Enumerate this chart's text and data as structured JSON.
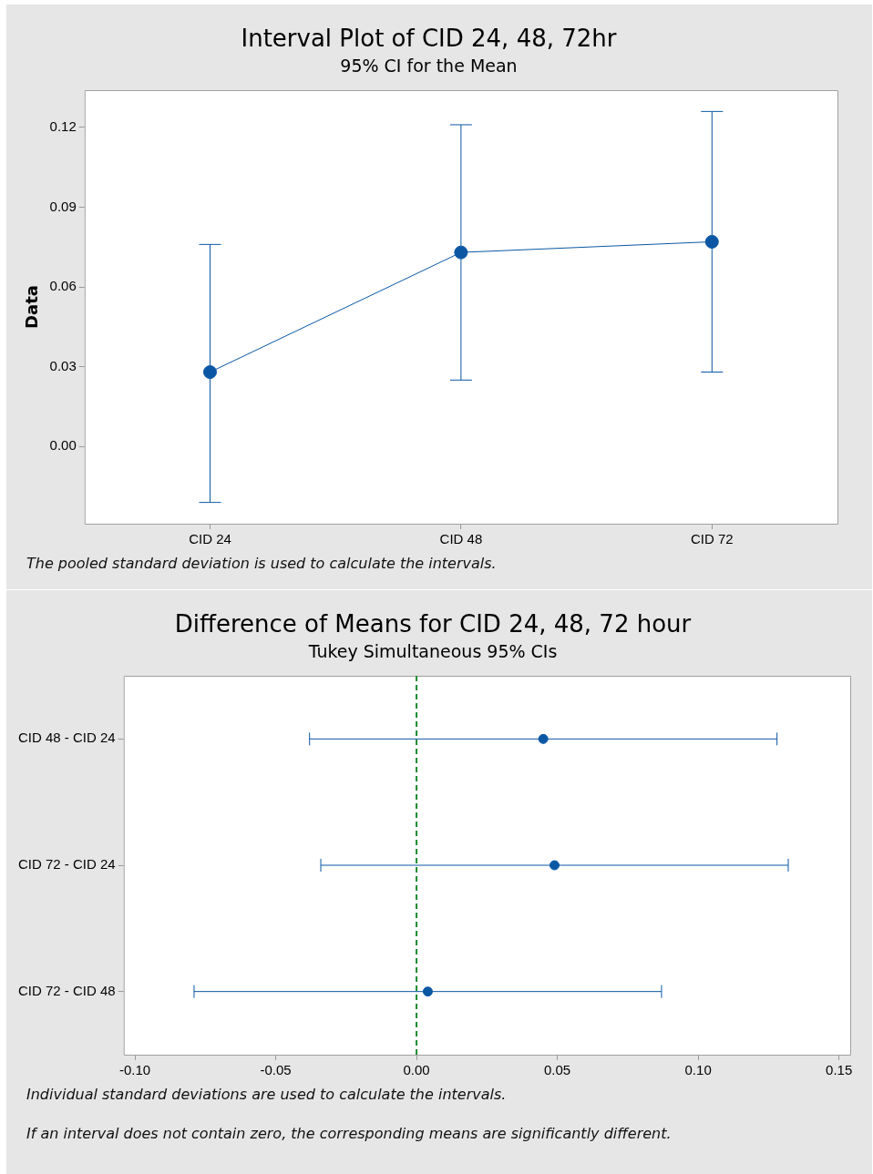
{
  "chart_data": [
    {
      "type": "line",
      "title": "Interval Plot of CID 24, 48, 72hr",
      "subtitle": "95% CI for the Mean",
      "ylabel": "Data",
      "categories": [
        "CID 24",
        "CID 48",
        "CID 72"
      ],
      "series": [
        {
          "color": "#0b57a4",
          "values": [
            0.028,
            0.073,
            0.077
          ],
          "errors": [
            [
              -0.021,
              0.076
            ],
            [
              0.025,
              0.121
            ],
            [
              0.028,
              0.126
            ]
          ]
        }
      ],
      "ylim": [
        -0.029,
        0.134
      ],
      "yticks": [
        {
          "value": 0,
          "label": "0.00"
        },
        {
          "value": 0.03,
          "label": "0.03"
        },
        {
          "value": 0.06,
          "label": "0.06"
        },
        {
          "value": 0.09,
          "label": "0.09"
        },
        {
          "value": 0.12,
          "label": "0.12"
        }
      ],
      "marker": "circle",
      "line_style": "solid",
      "legend": false,
      "annotations": [
        "The pooled standard deviation is used to calculate the intervals."
      ]
    },
    {
      "type": "scatter",
      "orientation": "horizontal",
      "title": "Difference of Means for CID 24, 48, 72 hour",
      "subtitle": "Tukey Simultaneous 95% CIs",
      "categories": [
        "CID 48 - CID 24",
        "CID 72 - CID 24",
        "CID 72 - CID 48"
      ],
      "series": [
        {
          "color": "#0b57a4",
          "values": [
            0.045,
            0.049,
            0.004
          ],
          "errors": [
            [
              -0.038,
              0.128
            ],
            [
              -0.034,
              0.132
            ],
            [
              -0.079,
              0.087
            ]
          ]
        }
      ],
      "xlim": [
        -0.104,
        0.154
      ],
      "xticks": [
        {
          "value": -0.1,
          "label": "-0.10"
        },
        {
          "value": -0.05,
          "label": "-0.05"
        },
        {
          "value": 0,
          "label": "0.00"
        },
        {
          "value": 0.05,
          "label": "0.05"
        },
        {
          "value": 0.1,
          "label": "0.10"
        },
        {
          "value": 0.15,
          "label": "0.15"
        }
      ],
      "ref_lines": [
        {
          "axis": "x",
          "value": 0,
          "color": "#1a8a2e",
          "line_style": "dashed"
        }
      ],
      "marker": "circle",
      "legend": false,
      "annotations": [
        "Individual standard deviations are used to calculate the intervals.",
        "If an interval does not contain zero, the corresponding means are significantly different."
      ]
    }
  ]
}
